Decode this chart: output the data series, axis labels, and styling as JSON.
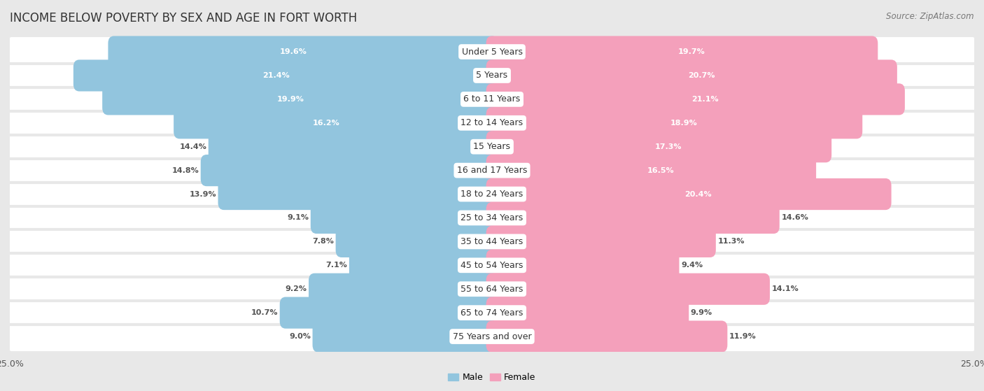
{
  "title": "INCOME BELOW POVERTY BY SEX AND AGE IN FORT WORTH",
  "source": "Source: ZipAtlas.com",
  "categories": [
    "Under 5 Years",
    "5 Years",
    "6 to 11 Years",
    "12 to 14 Years",
    "15 Years",
    "16 and 17 Years",
    "18 to 24 Years",
    "25 to 34 Years",
    "35 to 44 Years",
    "45 to 54 Years",
    "55 to 64 Years",
    "65 to 74 Years",
    "75 Years and over"
  ],
  "male_values": [
    19.6,
    21.4,
    19.9,
    16.2,
    14.4,
    14.8,
    13.9,
    9.1,
    7.8,
    7.1,
    9.2,
    10.7,
    9.0
  ],
  "female_values": [
    19.7,
    20.7,
    21.1,
    18.9,
    17.3,
    16.5,
    20.4,
    14.6,
    11.3,
    9.4,
    14.1,
    9.9,
    11.9
  ],
  "male_color": "#92c5de",
  "female_color": "#f4a0bb",
  "male_label": "Male",
  "female_label": "Female",
  "xlim": 25.0,
  "background_color": "#e8e8e8",
  "bar_background_color": "#ffffff",
  "title_fontsize": 12,
  "source_fontsize": 8.5,
  "label_fontsize": 8,
  "category_fontsize": 9,
  "axis_label_fontsize": 9,
  "male_text_threshold": 15.5,
  "female_text_threshold": 15.5
}
